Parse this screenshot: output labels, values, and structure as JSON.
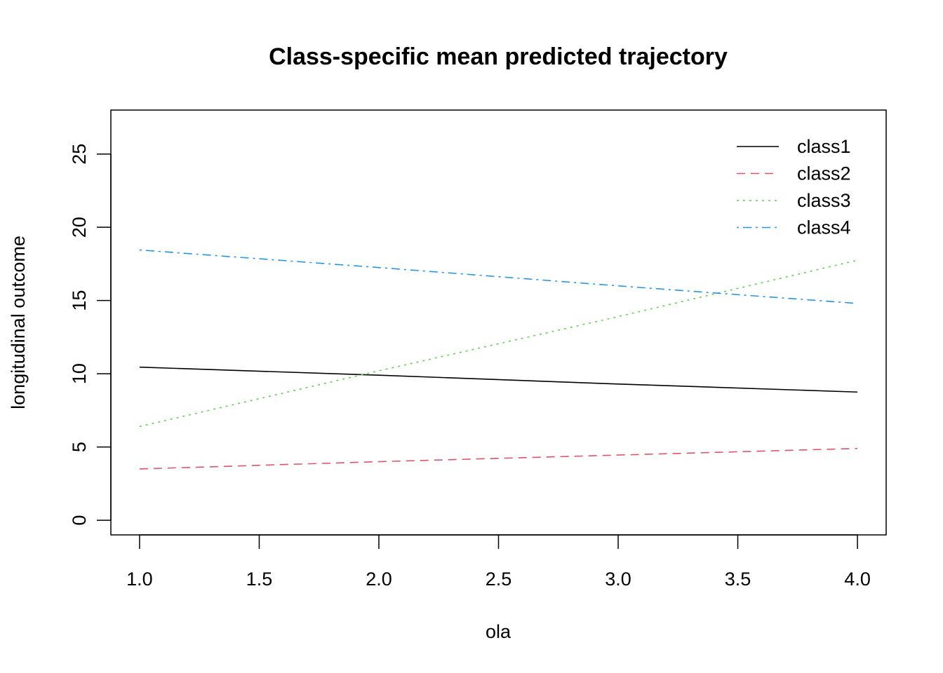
{
  "chart_data": {
    "type": "line",
    "title": "Class-specific mean predicted trajectory",
    "xlabel": "ola",
    "ylabel": "longitudinal outcome",
    "xlim": [
      0.88,
      4.12
    ],
    "ylim": [
      -1,
      28
    ],
    "x_ticks": [
      1.0,
      1.5,
      2.0,
      2.5,
      3.0,
      3.5,
      4.0
    ],
    "x_tick_labels": [
      "1.0",
      "1.5",
      "2.0",
      "2.5",
      "3.0",
      "3.5",
      "4.0"
    ],
    "y_ticks": [
      0,
      5,
      10,
      15,
      20,
      25
    ],
    "y_tick_labels": [
      "0",
      "5",
      "10",
      "15",
      "20",
      "25"
    ],
    "grid": false,
    "legend_position": "top-right",
    "x": [
      1,
      2,
      3,
      4
    ],
    "series": [
      {
        "name": "class1",
        "color": "#000000",
        "line_style": "solid",
        "values": [
          10.45,
          9.9,
          9.3,
          8.75
        ]
      },
      {
        "name": "class2",
        "color": "#DF536B",
        "line_style": "dashed",
        "values": [
          3.5,
          4.0,
          4.45,
          4.9
        ]
      },
      {
        "name": "class3",
        "color": "#61D04F",
        "line_style": "dotted",
        "values": [
          6.4,
          10.2,
          13.9,
          17.75
        ]
      },
      {
        "name": "class4",
        "color": "#2297E6",
        "line_style": "dotdash",
        "values": [
          18.45,
          17.25,
          16.0,
          14.8
        ]
      }
    ]
  }
}
